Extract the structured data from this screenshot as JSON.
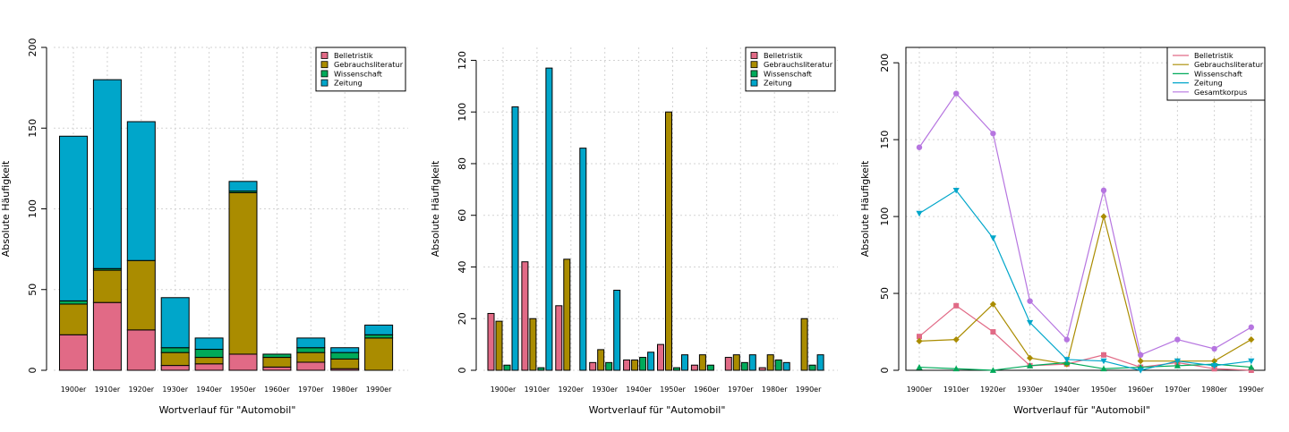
{
  "colors": {
    "Belletristik": "#E16A86",
    "Gebrauchsliteratur": "#AA8C00",
    "Wissenschaft": "#00AA5A",
    "Zeitung": "#00A6CA",
    "Gesamtkorpus": "#B675E0",
    "grid": "#d3d3d3"
  },
  "chart_data": [
    {
      "type": "bar",
      "stacked": true,
      "xlabel": "Wortverlauf für \"Automobil\"",
      "ylabel": "Absolute Häufigkeit",
      "ylim": [
        0,
        200
      ],
      "yticks": [
        0,
        50,
        100,
        150,
        200
      ],
      "grid": true,
      "legend_position": "top-right",
      "categories": [
        "1900er",
        "1910er",
        "1920er",
        "1930er",
        "1940er",
        "1950er",
        "1960er",
        "1970er",
        "1980er",
        "1990er"
      ],
      "series": [
        {
          "name": "Belletristik",
          "values": [
            22,
            42,
            25,
            3,
            4,
            10,
            2,
            5,
            1,
            0
          ]
        },
        {
          "name": "Gebrauchsliteratur",
          "values": [
            19,
            20,
            43,
            8,
            4,
            100,
            6,
            6,
            6,
            20
          ]
        },
        {
          "name": "Wissenschaft",
          "values": [
            2,
            1,
            0,
            3,
            5,
            1,
            2,
            3,
            4,
            2
          ]
        },
        {
          "name": "Zeitung",
          "values": [
            102,
            117,
            86,
            31,
            7,
            6,
            0,
            6,
            3,
            6
          ]
        }
      ]
    },
    {
      "type": "bar",
      "stacked": false,
      "xlabel": "Wortverlauf für \"Automobil\"",
      "ylabel": "Absolute Häufigkeit",
      "ylim": [
        0,
        125
      ],
      "yticks": [
        0,
        20,
        40,
        60,
        80,
        100,
        120
      ],
      "grid": true,
      "legend_position": "top-right",
      "categories": [
        "1900er",
        "1910er",
        "1920er",
        "1930er",
        "1940er",
        "1950er",
        "1960er",
        "1970er",
        "1980er",
        "1990er"
      ],
      "series": [
        {
          "name": "Belletristik",
          "values": [
            22,
            42,
            25,
            3,
            4,
            10,
            2,
            5,
            1,
            0
          ]
        },
        {
          "name": "Gebrauchsliteratur",
          "values": [
            19,
            20,
            43,
            8,
            4,
            100,
            6,
            6,
            6,
            20
          ]
        },
        {
          "name": "Wissenschaft",
          "values": [
            2,
            1,
            0,
            3,
            5,
            1,
            2,
            3,
            4,
            2
          ]
        },
        {
          "name": "Zeitung",
          "values": [
            102,
            117,
            86,
            31,
            7,
            6,
            0,
            6,
            3,
            6
          ]
        }
      ]
    },
    {
      "type": "line",
      "xlabel": "Wortverlauf für \"Automobil\"",
      "ylabel": "Absolute Häufigkeit",
      "ylim": [
        0,
        210
      ],
      "yticks": [
        0,
        50,
        100,
        150,
        200
      ],
      "grid": true,
      "legend_position": "top-right",
      "categories": [
        "1900er",
        "1910er",
        "1920er",
        "1930er",
        "1940er",
        "1950er",
        "1960er",
        "1970er",
        "1980er",
        "1990er"
      ],
      "series": [
        {
          "name": "Belletristik",
          "marker": "square",
          "values": [
            22,
            42,
            25,
            3,
            4,
            10,
            2,
            5,
            1,
            0
          ]
        },
        {
          "name": "Gebrauchsliteratur",
          "marker": "diamond",
          "values": [
            19,
            20,
            43,
            8,
            4,
            100,
            6,
            6,
            6,
            20
          ]
        },
        {
          "name": "Wissenschaft",
          "marker": "triangle-up",
          "values": [
            2,
            1,
            0,
            3,
            5,
            1,
            2,
            3,
            4,
            2
          ]
        },
        {
          "name": "Zeitung",
          "marker": "triangle-down",
          "values": [
            102,
            117,
            86,
            31,
            7,
            6,
            0,
            6,
            3,
            6
          ]
        },
        {
          "name": "Gesamtkorpus",
          "marker": "circle",
          "values": [
            145,
            180,
            154,
            45,
            20,
            117,
            10,
            20,
            14,
            28
          ]
        }
      ]
    }
  ]
}
